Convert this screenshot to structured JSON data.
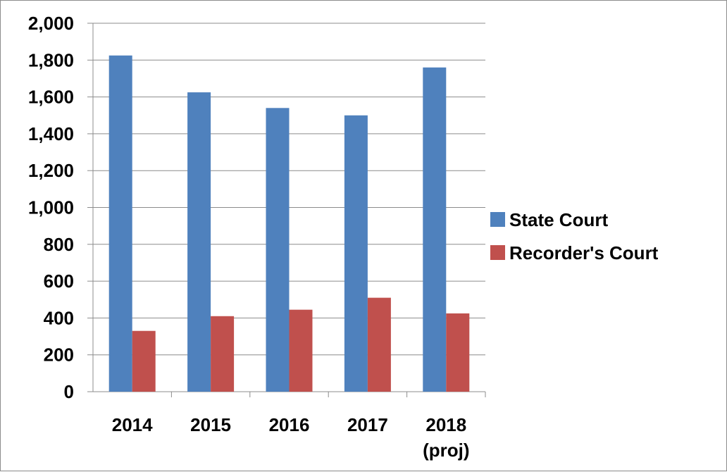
{
  "chart_data": {
    "type": "bar",
    "categories": [
      [
        "2014"
      ],
      [
        "2015"
      ],
      [
        "2016"
      ],
      [
        "2017"
      ],
      [
        "2018",
        "(proj)"
      ]
    ],
    "series": [
      {
        "name": "State Court",
        "color": "#4f81bd",
        "values": [
          1825,
          1625,
          1540,
          1500,
          1760
        ]
      },
      {
        "name": "Recorder's Court",
        "color": "#c0504d",
        "values": [
          330,
          410,
          445,
          510,
          425
        ]
      }
    ],
    "y_ticks": [
      "0",
      "200",
      "400",
      "600",
      "800",
      "1,000",
      "1,200",
      "1,400",
      "1,600",
      "1,800",
      "2,000"
    ],
    "ylim": [
      0,
      2000
    ],
    "grid": true,
    "legend_position": "right"
  }
}
